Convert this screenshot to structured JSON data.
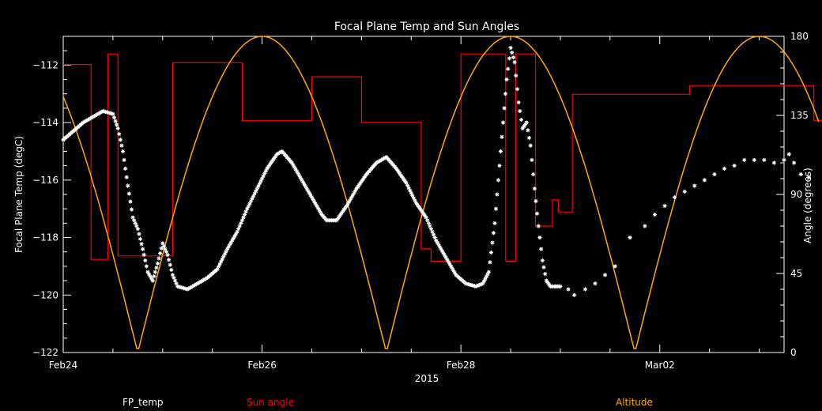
{
  "chart_data": {
    "type": "line",
    "title": "Focal Plane Temp and Sun Angles",
    "xlabel": "2015",
    "ylabel_left": "Focal Plane Temp (degC)",
    "ylabel_right": "Angle (degrees)",
    "x_tick_labels": [
      "Feb24",
      "Feb26",
      "Feb28",
      "Mar02"
    ],
    "x_tick_days": [
      0,
      2,
      4,
      6
    ],
    "xlim_days": [
      0,
      7.25
    ],
    "ylim_left": [
      -122,
      -111
    ],
    "y_left_ticks": [
      -122,
      -120,
      -118,
      -116,
      -114,
      -112
    ],
    "ylim_right": [
      0,
      180
    ],
    "y_right_ticks": [
      0,
      45,
      90,
      135,
      180
    ],
    "colors": {
      "fp_temp": "#ffffff",
      "sun_angle": "#ff0000",
      "altitude": "#ffaa00"
    },
    "legend": [
      "FP_temp",
      "Sun angle",
      "Altitude"
    ],
    "series": [
      {
        "name": "FP_temp",
        "axis": "left",
        "style": "markers",
        "points": [
          [
            0.0,
            -114.6
          ],
          [
            0.1,
            -114.3
          ],
          [
            0.2,
            -114.0
          ],
          [
            0.3,
            -113.8
          ],
          [
            0.4,
            -113.6
          ],
          [
            0.5,
            -113.7
          ],
          [
            0.55,
            -114.2
          ],
          [
            0.6,
            -115.0
          ],
          [
            0.65,
            -116.2
          ],
          [
            0.7,
            -117.3
          ],
          [
            0.75,
            -117.7
          ],
          [
            0.8,
            -118.4
          ],
          [
            0.85,
            -119.2
          ],
          [
            0.9,
            -119.5
          ],
          [
            0.95,
            -118.9
          ],
          [
            1.0,
            -118.2
          ],
          [
            1.05,
            -118.6
          ],
          [
            1.1,
            -119.3
          ],
          [
            1.15,
            -119.7
          ],
          [
            1.25,
            -119.8
          ],
          [
            1.35,
            -119.6
          ],
          [
            1.45,
            -119.4
          ],
          [
            1.55,
            -119.1
          ],
          [
            1.65,
            -118.4
          ],
          [
            1.75,
            -117.8
          ],
          [
            1.85,
            -117.0
          ],
          [
            1.95,
            -116.3
          ],
          [
            2.05,
            -115.6
          ],
          [
            2.15,
            -115.1
          ],
          [
            2.2,
            -115.0
          ],
          [
            2.3,
            -115.4
          ],
          [
            2.4,
            -116.0
          ],
          [
            2.5,
            -116.6
          ],
          [
            2.6,
            -117.2
          ],
          [
            2.65,
            -117.4
          ],
          [
            2.75,
            -117.4
          ],
          [
            2.85,
            -116.9
          ],
          [
            2.95,
            -116.3
          ],
          [
            3.05,
            -115.8
          ],
          [
            3.15,
            -115.4
          ],
          [
            3.25,
            -115.2
          ],
          [
            3.35,
            -115.6
          ],
          [
            3.45,
            -116.1
          ],
          [
            3.55,
            -116.8
          ],
          [
            3.65,
            -117.3
          ],
          [
            3.75,
            -118.1
          ],
          [
            3.85,
            -118.7
          ],
          [
            3.95,
            -119.3
          ],
          [
            4.05,
            -119.6
          ],
          [
            4.15,
            -119.7
          ],
          [
            4.22,
            -119.6
          ],
          [
            4.28,
            -119.2
          ],
          [
            4.34,
            -117.5
          ],
          [
            4.4,
            -115.0
          ],
          [
            4.46,
            -112.5
          ],
          [
            4.5,
            -111.4
          ],
          [
            4.54,
            -111.9
          ],
          [
            4.58,
            -113.3
          ],
          [
            4.62,
            -114.2
          ],
          [
            4.66,
            -114.0
          ],
          [
            4.7,
            -114.8
          ],
          [
            4.74,
            -116.3
          ],
          [
            4.78,
            -117.6
          ],
          [
            4.82,
            -118.8
          ],
          [
            4.86,
            -119.5
          ],
          [
            4.9,
            -119.7
          ],
          [
            5.0,
            -119.7
          ],
          [
            5.08,
            -119.8
          ],
          [
            5.14,
            -120.0
          ],
          [
            5.25,
            -119.8
          ],
          [
            5.35,
            -119.6
          ],
          [
            5.45,
            -119.3
          ],
          [
            5.55,
            -119.0
          ],
          [
            5.7,
            -118.0
          ],
          [
            5.85,
            -117.6
          ],
          [
            5.95,
            -117.2
          ],
          [
            6.05,
            -116.9
          ],
          [
            6.15,
            -116.6
          ],
          [
            6.25,
            -116.4
          ],
          [
            6.35,
            -116.2
          ],
          [
            6.45,
            -116.0
          ],
          [
            6.55,
            -115.8
          ],
          [
            6.65,
            -115.6
          ],
          [
            6.75,
            -115.5
          ],
          [
            6.85,
            -115.3
          ],
          [
            6.95,
            -115.3
          ],
          [
            7.05,
            -115.3
          ],
          [
            7.15,
            -115.4
          ],
          [
            7.25,
            -115.3
          ],
          [
            7.3,
            -115.1
          ],
          [
            7.35,
            -115.4
          ],
          [
            7.42,
            -115.8
          ],
          [
            7.5,
            -115.9
          ],
          [
            7.58,
            -116.0
          ]
        ]
      },
      {
        "name": "Sun angle",
        "axis": "right",
        "style": "step",
        "points": [
          [
            0.0,
            164
          ],
          [
            0.28,
            164
          ],
          [
            0.28,
            53
          ],
          [
            0.45,
            53
          ],
          [
            0.45,
            170
          ],
          [
            0.55,
            170
          ],
          [
            0.55,
            55
          ],
          [
            1.1,
            55
          ],
          [
            1.1,
            165
          ],
          [
            1.8,
            165
          ],
          [
            1.8,
            132
          ],
          [
            2.5,
            132
          ],
          [
            2.5,
            157
          ],
          [
            3.0,
            157
          ],
          [
            3.0,
            131
          ],
          [
            3.6,
            131
          ],
          [
            3.6,
            59
          ],
          [
            3.7,
            59
          ],
          [
            3.7,
            52
          ],
          [
            4.0,
            52
          ],
          [
            4.0,
            170
          ],
          [
            4.45,
            170
          ],
          [
            4.45,
            52
          ],
          [
            4.55,
            52
          ],
          [
            4.55,
            170
          ],
          [
            4.75,
            170
          ],
          [
            4.75,
            72
          ],
          [
            4.92,
            72
          ],
          [
            4.92,
            87
          ],
          [
            4.98,
            87
          ],
          [
            4.98,
            80
          ],
          [
            5.02,
            80
          ],
          [
            5.02,
            80
          ],
          [
            5.12,
            80
          ],
          [
            5.12,
            147
          ],
          [
            6.3,
            147
          ],
          [
            6.3,
            152
          ],
          [
            7.55,
            152
          ],
          [
            7.55,
            132
          ],
          [
            7.85,
            132
          ],
          [
            7.85,
            170
          ],
          [
            8.1,
            170
          ]
        ]
      },
      {
        "name": "Altitude",
        "axis": "right",
        "style": "sine",
        "period_days": 5.0,
        "zero_day": 0.75,
        "peak_degrees": 180
      }
    ]
  }
}
